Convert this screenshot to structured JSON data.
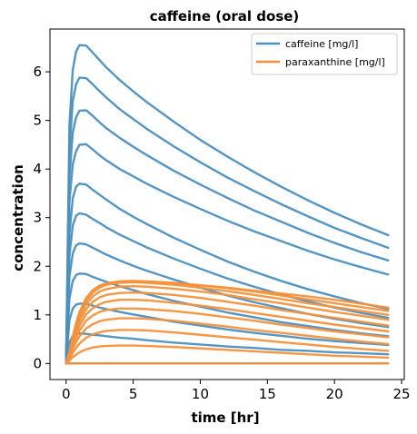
{
  "chart_data": {
    "type": "line",
    "title": "caffeine (oral dose)",
    "xlabel": "time [hr]",
    "ylabel": "concentration",
    "xlim": [
      -1.2,
      25.2
    ],
    "ylim": [
      -0.33,
      6.88
    ],
    "x_ticks": [
      0,
      5,
      10,
      15,
      20,
      25
    ],
    "y_ticks": [
      0,
      1,
      2,
      3,
      4,
      5,
      6
    ],
    "grid": false,
    "legend_position": "top-right",
    "x": [
      0,
      0.25,
      0.5,
      0.75,
      1,
      1.5,
      2,
      2.5,
      3,
      4,
      5,
      6,
      8,
      10,
      12,
      14,
      16,
      18,
      20,
      22,
      24
    ],
    "series": [
      {
        "name": "caffeine [mg/l]",
        "color": "#4a90c2",
        "lines": [
          {
            "values": [
              0,
              0,
              0,
              0,
              0,
              0,
              0,
              0,
              0,
              0,
              0,
              0,
              0,
              0,
              0,
              0,
              0,
              0,
              0,
              0,
              0
            ]
          },
          {
            "values": [
              0,
              0.44,
              0.57,
              0.61,
              0.62,
              0.61,
              0.59,
              0.58,
              0.56,
              0.53,
              0.51,
              0.48,
              0.43,
              0.39,
              0.35,
              0.32,
              0.28,
              0.26,
              0.23,
              0.21,
              0.19
            ]
          },
          {
            "values": [
              0,
              0.89,
              1.13,
              1.21,
              1.23,
              1.23,
              1.19,
              1.15,
              1.12,
              1.06,
              1.01,
              0.96,
              0.86,
              0.78,
              0.7,
              0.63,
              0.57,
              0.51,
              0.46,
              0.42,
              0.38
            ]
          },
          {
            "values": [
              0,
              1.33,
              1.7,
              1.82,
              1.85,
              1.84,
              1.78,
              1.73,
              1.68,
              1.59,
              1.51,
              1.43,
              1.29,
              1.17,
              1.05,
              0.95,
              0.85,
              0.77,
              0.69,
              0.62,
              0.56
            ]
          },
          {
            "values": [
              0,
              1.78,
              2.27,
              2.43,
              2.47,
              2.45,
              2.38,
              2.31,
              2.24,
              2.12,
              2.01,
              1.91,
              1.73,
              1.56,
              1.4,
              1.26,
              1.14,
              1.02,
              0.92,
              0.83,
              0.75
            ]
          },
          {
            "values": [
              0,
              2.22,
              2.84,
              3.04,
              3.09,
              3.06,
              2.97,
              2.89,
              2.8,
              2.65,
              2.52,
              2.39,
              2.16,
              1.95,
              1.75,
              1.58,
              1.42,
              1.28,
              1.15,
              1.04,
              0.94
            ]
          },
          {
            "values": [
              0,
              2.67,
              3.4,
              3.64,
              3.7,
              3.68,
              3.57,
              3.47,
              3.37,
              3.18,
              3.02,
              2.87,
              2.59,
              2.34,
              2.1,
              1.89,
              1.7,
              1.53,
              1.38,
              1.24,
              1.12
            ]
          },
          {
            "values": [
              0,
              3.33,
              4.1,
              4.37,
              4.5,
              4.51,
              4.4,
              4.28,
              4.18,
              4.0,
              3.85,
              3.7,
              3.43,
              3.18,
              2.94,
              2.72,
              2.52,
              2.32,
              2.14,
              1.98,
              1.83
            ]
          },
          {
            "values": [
              0,
              3.85,
              4.75,
              5.07,
              5.2,
              5.21,
              5.09,
              4.96,
              4.84,
              4.64,
              4.46,
              4.29,
              3.97,
              3.68,
              3.41,
              3.15,
              2.92,
              2.69,
              2.48,
              2.29,
              2.12
            ]
          },
          {
            "values": [
              0,
              4.38,
              5.4,
              5.75,
              5.88,
              5.87,
              5.74,
              5.6,
              5.47,
              5.23,
              5.03,
              4.83,
              4.47,
              4.14,
              3.83,
              3.55,
              3.28,
              3.03,
              2.79,
              2.58,
              2.38
            ]
          },
          {
            "values": [
              0,
              4.9,
              6.04,
              6.42,
              6.55,
              6.54,
              6.39,
              6.24,
              6.09,
              5.83,
              5.6,
              5.38,
              4.98,
              4.6,
              4.26,
              3.94,
              3.64,
              3.36,
              3.1,
              2.86,
              2.64
            ]
          }
        ]
      },
      {
        "name": "paraxanthine [mg/l]",
        "color": "#f5913a",
        "lines": [
          {
            "values": [
              0,
              0,
              0,
              0,
              0,
              0,
              0,
              0,
              0,
              0,
              0,
              0,
              0,
              0,
              0,
              0,
              0,
              0,
              0,
              0,
              0
            ]
          },
          {
            "values": [
              0,
              0.06,
              0.13,
              0.18,
              0.23,
              0.29,
              0.33,
              0.35,
              0.36,
              0.37,
              0.37,
              0.36,
              0.34,
              0.31,
              0.28,
              0.25,
              0.22,
              0.19,
              0.16,
              0.14,
              0.12
            ]
          },
          {
            "values": [
              0,
              0.1,
              0.22,
              0.32,
              0.41,
              0.53,
              0.6,
              0.64,
              0.67,
              0.69,
              0.69,
              0.68,
              0.64,
              0.59,
              0.54,
              0.49,
              0.44,
              0.39,
              0.34,
              0.3,
              0.26
            ]
          },
          {
            "values": [
              0,
              0.13,
              0.3,
              0.44,
              0.56,
              0.72,
              0.81,
              0.87,
              0.9,
              0.93,
              0.93,
              0.92,
              0.88,
              0.82,
              0.76,
              0.69,
              0.63,
              0.57,
              0.51,
              0.45,
              0.4
            ]
          },
          {
            "values": [
              0,
              0.16,
              0.36,
              0.53,
              0.68,
              0.88,
              0.99,
              1.06,
              1.1,
              1.13,
              1.13,
              1.12,
              1.08,
              1.02,
              0.95,
              0.88,
              0.8,
              0.73,
              0.66,
              0.6,
              0.54
            ]
          },
          {
            "values": [
              0,
              0.18,
              0.41,
              0.61,
              0.78,
              1.01,
              1.14,
              1.22,
              1.27,
              1.31,
              1.31,
              1.3,
              1.25,
              1.19,
              1.12,
              1.04,
              0.96,
              0.88,
              0.8,
              0.73,
              0.66
            ]
          },
          {
            "values": [
              0,
              0.2,
              0.46,
              0.68,
              0.87,
              1.12,
              1.27,
              1.36,
              1.41,
              1.45,
              1.46,
              1.45,
              1.41,
              1.35,
              1.27,
              1.19,
              1.1,
              1.02,
              0.94,
              0.86,
              0.78
            ]
          },
          {
            "values": [
              0,
              0.21,
              0.49,
              0.73,
              0.94,
              1.22,
              1.38,
              1.48,
              1.53,
              1.58,
              1.59,
              1.58,
              1.54,
              1.48,
              1.41,
              1.32,
              1.24,
              1.15,
              1.06,
              0.98,
              0.9
            ]
          },
          {
            "values": [
              0,
              0.22,
              0.52,
              0.77,
              1.0,
              1.29,
              1.46,
              1.56,
              1.62,
              1.66,
              1.67,
              1.66,
              1.62,
              1.56,
              1.49,
              1.41,
              1.33,
              1.24,
              1.16,
              1.08,
              1.0
            ]
          },
          {
            "values": [
              0,
              0.23,
              0.54,
              0.8,
              1.03,
              1.33,
              1.5,
              1.6,
              1.65,
              1.69,
              1.7,
              1.69,
              1.66,
              1.61,
              1.55,
              1.48,
              1.4,
              1.32,
              1.24,
              1.16,
              1.08
            ]
          },
          {
            "values": [
              0,
              0.24,
              0.56,
              0.83,
              1.06,
              1.35,
              1.51,
              1.6,
              1.65,
              1.68,
              1.68,
              1.67,
              1.65,
              1.61,
              1.56,
              1.5,
              1.44,
              1.38,
              1.31,
              1.23,
              1.15
            ]
          }
        ]
      }
    ]
  }
}
